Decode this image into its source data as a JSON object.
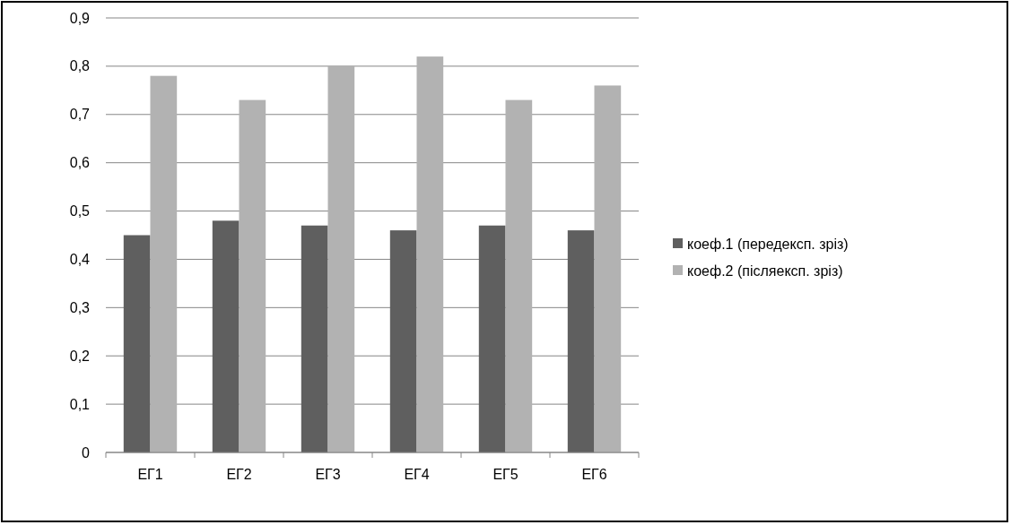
{
  "chart_data": {
    "type": "bar",
    "categories": [
      "ЕГ1",
      "ЕГ2",
      "ЕГ3",
      "ЕГ4",
      "ЕГ5",
      "ЕГ6"
    ],
    "series": [
      {
        "name": "коеф.1 (передексп. зріз)",
        "color": "#5f5f5f",
        "values": [
          0.45,
          0.48,
          0.47,
          0.46,
          0.47,
          0.46
        ]
      },
      {
        "name": "коеф.2 (післяексп. зріз)",
        "color": "#b2b2b2",
        "values": [
          0.78,
          0.73,
          0.8,
          0.82,
          0.73,
          0.76
        ]
      }
    ],
    "ylim": [
      0,
      0.9
    ],
    "yticks": [
      {
        "value": 0,
        "label": "0"
      },
      {
        "value": 0.1,
        "label": "0,1"
      },
      {
        "value": 0.2,
        "label": "0,2"
      },
      {
        "value": 0.3,
        "label": "0,3"
      },
      {
        "value": 0.4,
        "label": "0,4"
      },
      {
        "value": 0.5,
        "label": "0,5"
      },
      {
        "value": 0.6,
        "label": "0,6"
      },
      {
        "value": 0.7,
        "label": "0,7"
      },
      {
        "value": 0.8,
        "label": "0,8"
      },
      {
        "value": 0.9,
        "label": "0,9"
      }
    ],
    "grid": "y",
    "legend": "right"
  }
}
